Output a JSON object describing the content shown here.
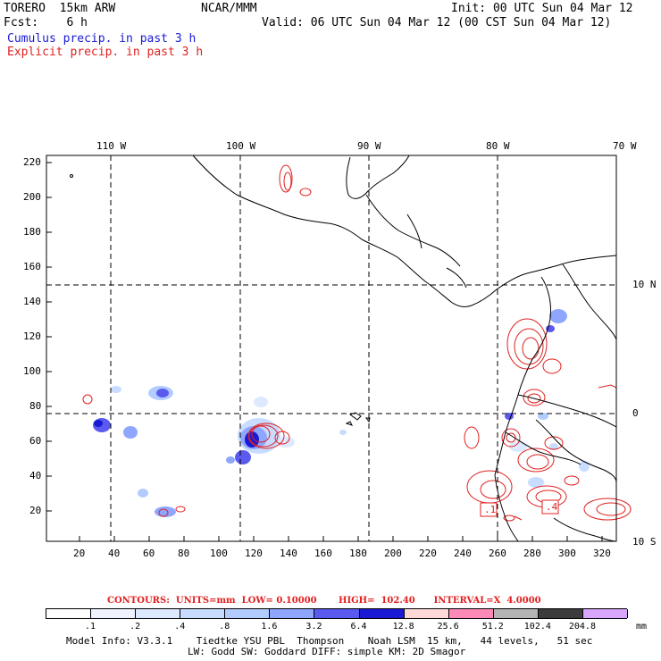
{
  "header": {
    "model": "TORERO  15km ARW",
    "org": "NCAR/MMM",
    "init": "Init: 00 UTC Sun 04 Mar 12",
    "fcst": "Fcst:    6 h",
    "valid": "Valid: 06 UTC Sun 04 Mar 12 (00 CST Sun 04 Mar 12)",
    "legend1": "Cumulus precip. in past 3 h",
    "legend2": "Explicit precip. in past 3 h"
  },
  "colors": {
    "cumulus": "#1a1ad4",
    "explicit": "#e02020",
    "contour_line": "#e02020",
    "coast": "#000000"
  },
  "lon_labels": [
    "110 W",
    "100 W",
    "90 W",
    "80 W",
    "70 W"
  ],
  "lat_labels": [
    "10 N",
    "0",
    "10 S"
  ],
  "y_ticks": [
    "220",
    "200",
    "180",
    "160",
    "140",
    "120",
    "100",
    "80",
    "60",
    "40",
    "20"
  ],
  "x_ticks": [
    "20",
    "40",
    "60",
    "80",
    "100",
    "120",
    "140",
    "160",
    "180",
    "200",
    "220",
    "240",
    "260",
    "280",
    "300",
    "320"
  ],
  "contour_labels": [
    ".1",
    ".4"
  ],
  "contours_info": "CONTOURS:  UNITS=mm  LOW= 0.10000       HIGH=  102.40      INTERVAL=X  4.0000",
  "colorbar": {
    "labels": [
      ".1",
      ".2",
      ".4",
      ".8",
      "1.6",
      "3.2",
      "6.4",
      "12.8",
      "25.6",
      "51.2",
      "102.4",
      "204.8"
    ],
    "unit": "mm",
    "colors": [
      "#ffffff",
      "#eef3ff",
      "#dde9ff",
      "#c8dcff",
      "#b3ccff",
      "#8fa6ff",
      "#5a5af0",
      "#1a1ad4",
      "#ffd8d8",
      "#ff8ab8",
      "#b4b4b4",
      "#3c3c3c",
      "#d8a6ff"
    ]
  },
  "footer": {
    "line1": "Model Info: V3.3.1    Tiedtke YSU PBL  Thompson    Noah LSM  15 km,   44 levels,   51 sec",
    "line2": "LW: Godd SW: Goddard DIFF: simple KM: 2D Smagor"
  }
}
